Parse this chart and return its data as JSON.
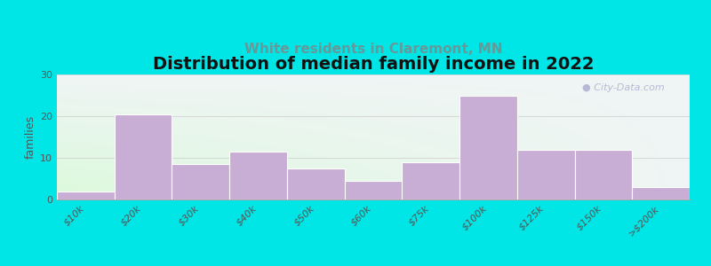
{
  "title": "Distribution of median family income in 2022",
  "subtitle": "White residents in Claremont, MN",
  "ylabel": "families",
  "categories": [
    "$10k",
    "$20k",
    "$30k",
    "$40k",
    "$50k",
    "$60k",
    "$75k",
    "$100k",
    "$125k",
    "$150k",
    ">$200k"
  ],
  "values": [
    2,
    20.5,
    8.5,
    11.5,
    7.5,
    4.5,
    9,
    25,
    12,
    12,
    3
  ],
  "bar_color": "#c8aed4",
  "bar_edge_color": "#ffffff",
  "background_color": "#00e5e5",
  "plot_bg_top_left": "#ddeec8",
  "plot_bg_top_right": "#eef2f8",
  "plot_bg_bottom": "#f8f8ff",
  "title_fontsize": 14,
  "subtitle_fontsize": 11,
  "subtitle_color": "#669999",
  "ylabel_fontsize": 9,
  "tick_fontsize": 8,
  "ylim": [
    0,
    30
  ],
  "yticks": [
    0,
    10,
    20,
    30
  ],
  "watermark": "City-Data.com",
  "watermark_color": "#aaaacc"
}
